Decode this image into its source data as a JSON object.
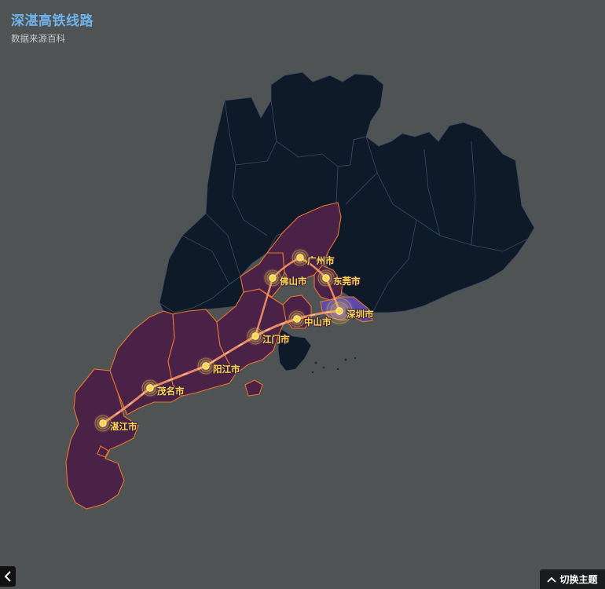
{
  "header": {
    "title": "深湛高铁线路",
    "subtitle": "数据来源百科"
  },
  "map": {
    "region": "广东省",
    "colors": {
      "background": "#4f5354",
      "province_fill": "#0e1a27",
      "province_border": "#3a4a66",
      "highlight_fill": "#4a2147",
      "highlight_border": "#e8762c",
      "shenzhen_fill": "#5b4aa8",
      "route": "#ff9b6a",
      "city_dot": "#ffd54a",
      "label": "#ffd54a"
    },
    "highlighted_cities": [
      "湛江市",
      "茂名市",
      "阳江市",
      "江门市",
      "中山市",
      "佛山市",
      "广州市",
      "东莞市",
      "深圳市"
    ],
    "route_stops": [
      {
        "name": "广州市",
        "icon": "station-dot-icon"
      },
      {
        "name": "东莞市",
        "icon": "station-dot-icon"
      },
      {
        "name": "佛山市",
        "icon": "station-dot-icon"
      },
      {
        "name": "深圳市",
        "icon": "station-dot-icon"
      },
      {
        "name": "中山市",
        "icon": "station-dot-icon"
      },
      {
        "name": "江门市",
        "icon": "station-dot-icon"
      },
      {
        "name": "阳江市",
        "icon": "station-dot-icon"
      },
      {
        "name": "茂名市",
        "icon": "station-dot-icon"
      },
      {
        "name": "湛江市",
        "icon": "station-dot-icon"
      }
    ]
  },
  "controls": {
    "back_icon": "chevron-left-icon",
    "theme_icon": "chevron-up-icon",
    "theme_label": "切换主题"
  }
}
